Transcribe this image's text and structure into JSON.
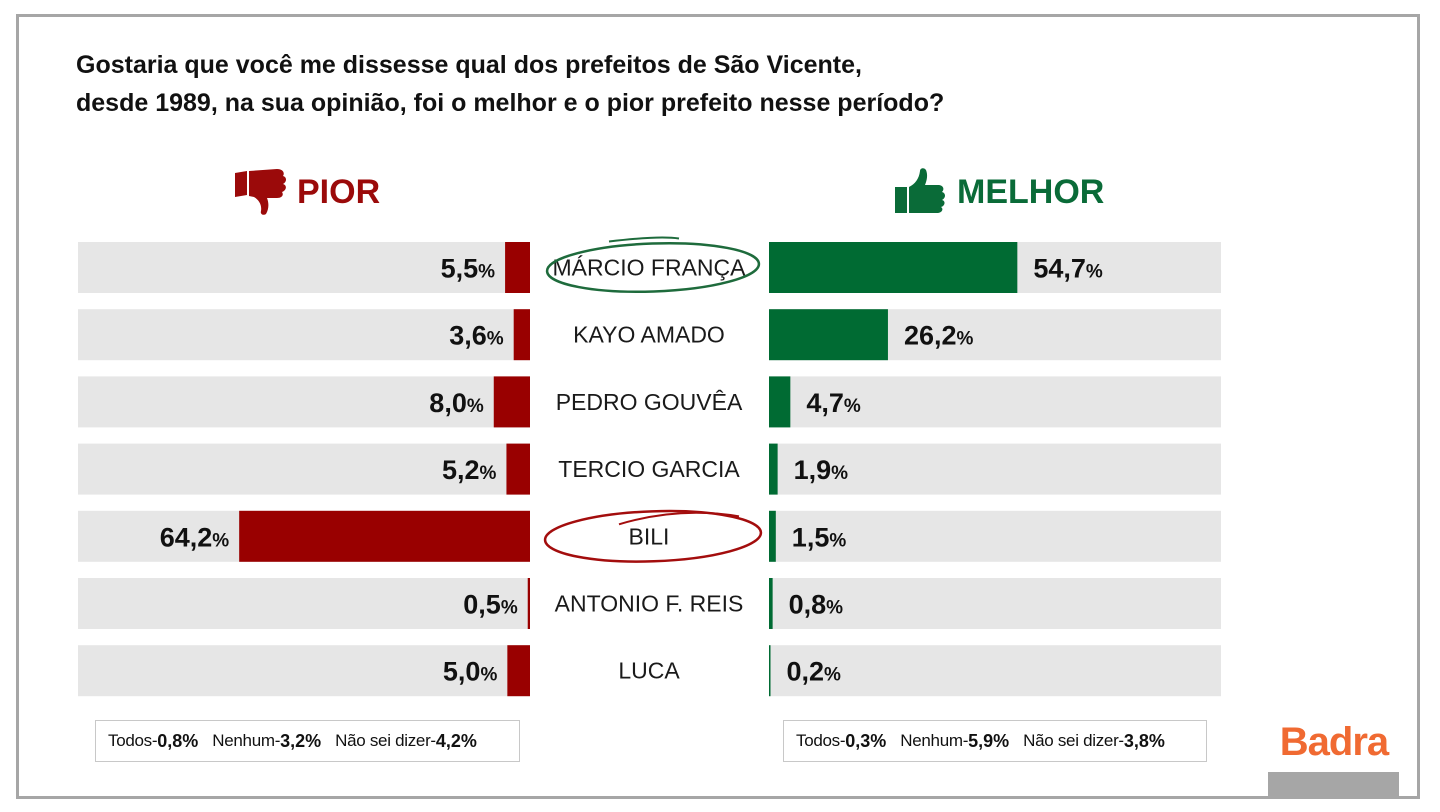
{
  "question": {
    "line1": "Gostaria que você me dissesse qual dos prefeitos de São Vicente,",
    "line2": "desde 1989, na sua opinião, foi o melhor e o pior prefeito nesse período?"
  },
  "pior_title": "PIOR",
  "melhor_title": "MELHOR",
  "colors": {
    "pior": "#990000",
    "melhor": "#006b33",
    "track": "#e6e6e6",
    "brand": "#f06a32",
    "circle": "#1e6b3c",
    "circle_bili": "#a30d0d"
  },
  "icons": {
    "pior": "thumbs-down-icon",
    "melhor": "thumbs-up-icon"
  },
  "chart_data": {
    "type": "bar",
    "categories": [
      "MÁRCIO FRANÇA",
      "KAYO AMADO",
      "PEDRO GOUVÊA",
      "TERCIO GARCIA",
      "BILI",
      "ANTONIO F. REIS",
      "LUCA"
    ],
    "series": [
      {
        "name": "PIOR",
        "values": [
          5.5,
          3.6,
          8.0,
          5.2,
          64.2,
          0.5,
          5.0
        ],
        "labels": [
          "5,5",
          "3,6",
          "8,0",
          "5,2",
          "64,2",
          "0,5",
          "5,0"
        ]
      },
      {
        "name": "MELHOR",
        "values": [
          54.7,
          26.2,
          4.7,
          1.9,
          1.5,
          0.8,
          0.2
        ],
        "labels": [
          "54,7",
          "26,2",
          "4,7",
          "1,9",
          "1,5",
          "0,8",
          "0,2"
        ]
      }
    ],
    "unit": "%",
    "circled": [
      "MÁRCIO FRANÇA",
      "BILI"
    ]
  },
  "legend_pior": [
    {
      "label": "Todos-",
      "value": "0,8%"
    },
    {
      "label": "Nenhum-",
      "value": "3,2%"
    },
    {
      "label": "Não sei dizer-",
      "value": "4,2%"
    }
  ],
  "legend_melhor": [
    {
      "label": "Todos-",
      "value": "0,3%"
    },
    {
      "label": "Nenhum-",
      "value": "5,9%"
    },
    {
      "label": "Não sei dizer-",
      "value": "3,8%"
    }
  ],
  "brand": "Badra"
}
